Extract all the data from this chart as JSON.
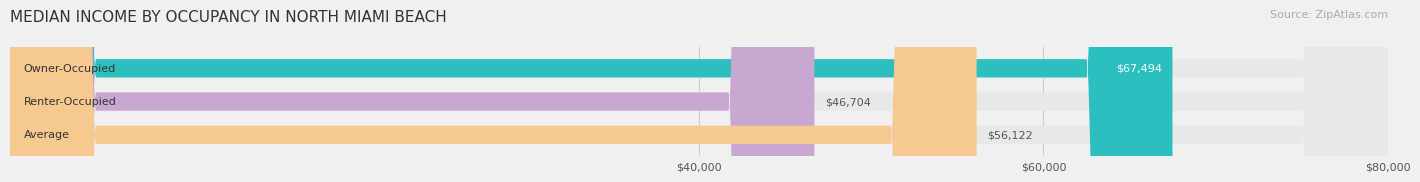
{
  "title": "MEDIAN INCOME BY OCCUPANCY IN NORTH MIAMI BEACH",
  "source": "Source: ZipAtlas.com",
  "categories": [
    "Owner-Occupied",
    "Renter-Occupied",
    "Average"
  ],
  "values": [
    67494,
    46704,
    56122
  ],
  "bar_colors": [
    "#2bbfbf",
    "#c8a8d0",
    "#f5c990"
  ],
  "label_colors": [
    "#ffffff",
    "#555555",
    "#555555"
  ],
  "value_labels": [
    "$67,494",
    "$46,704",
    "$56,122"
  ],
  "xlim": [
    0,
    80000
  ],
  "xticks": [
    40000,
    60000,
    80000
  ],
  "xtick_labels": [
    "$40,000",
    "$60,000",
    "$80,000"
  ],
  "bar_height": 0.55,
  "background_color": "#f0f0f0",
  "bar_background_color": "#e8e8e8",
  "title_fontsize": 11,
  "source_fontsize": 8,
  "label_fontsize": 8,
  "value_fontsize": 8,
  "tick_fontsize": 8
}
